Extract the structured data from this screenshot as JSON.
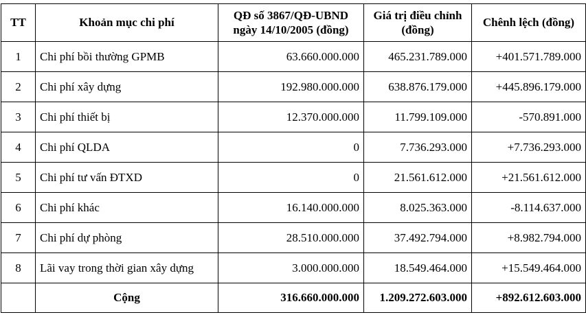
{
  "table": {
    "columns": [
      "TT",
      "Khoản mục chi phí",
      "QĐ số 3867/QĐ-UBND ngày 14/10/2005 (đồng)",
      "Giá trị điều chỉnh (đồng)",
      "Chênh lệch (đồng)"
    ],
    "rows": [
      {
        "tt": "1",
        "item": "Chi phí bồi thường GPMB",
        "qd": "63.660.000.000",
        "adjusted": "465.231.789.000",
        "diff": "+401.571.789.000"
      },
      {
        "tt": "2",
        "item": "Chi phí xây dựng",
        "qd": "192.980.000.000",
        "adjusted": "638.876.179.000",
        "diff": "+445.896.179.000"
      },
      {
        "tt": "3",
        "item": "Chi phí thiết bị",
        "qd": "12.370.000.000",
        "adjusted": "11.799.109.000",
        "diff": "-570.891.000"
      },
      {
        "tt": "4",
        "item": "Chi phí QLDA",
        "qd": "0",
        "adjusted": "7.736.293.000",
        "diff": "+7.736.293.000"
      },
      {
        "tt": "5",
        "item": "Chi phí tư vấn ĐTXD",
        "qd": "0",
        "adjusted": "21.561.612.000",
        "diff": "+21.561.612.000"
      },
      {
        "tt": "6",
        "item": "Chi phí khác",
        "qd": "16.140.000.000",
        "adjusted": "8.025.363.000",
        "diff": "-8.114.637.000"
      },
      {
        "tt": "7",
        "item": "Chi phí dự phòng",
        "qd": "28.510.000.000",
        "adjusted": "37.492.794.000",
        "diff": "+8.982.794.000"
      },
      {
        "tt": "8",
        "item": "Lãi vay trong thời gian xây dựng",
        "qd": "3.000.000.000",
        "adjusted": "18.549.464.000",
        "diff": "+15.549.464.000"
      }
    ],
    "footer": {
      "tt": "",
      "label": "Cộng",
      "qd": "316.660.000.000",
      "adjusted": "1.209.272.603.000",
      "diff": "+892.612.603.000"
    }
  }
}
